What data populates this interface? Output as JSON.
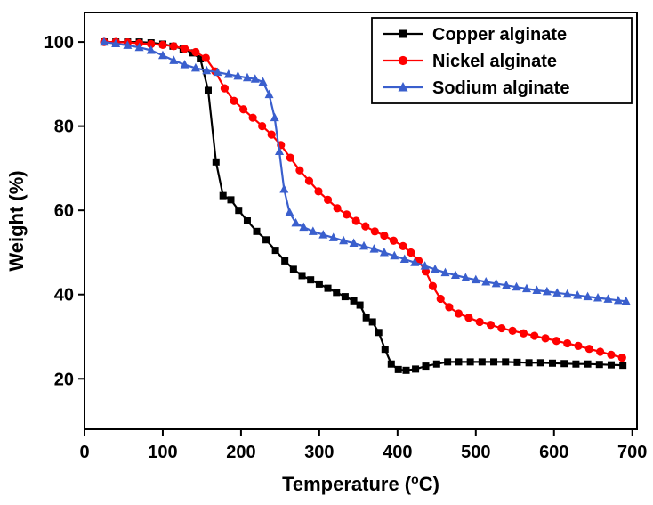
{
  "figure": {
    "background": "#ffffff",
    "axis_color": "#000000"
  },
  "chart_data": {
    "type": "line",
    "title": "",
    "xlabel": "Temperature (°C)",
    "xlabel_parts": {
      "pre": "Temperature (",
      "sup": "o",
      "post": "C)"
    },
    "ylabel": "Weight (%)",
    "xlim": [
      0,
      706
    ],
    "ylim": [
      8,
      107
    ],
    "xticks": [
      0,
      100,
      200,
      300,
      400,
      500,
      600,
      700
    ],
    "yticks": [
      20,
      40,
      60,
      80,
      100
    ],
    "grid": false,
    "legend_position": "top-right",
    "series": [
      {
        "name": "Copper alginate",
        "color": "#000000",
        "marker": "square",
        "x": [
          25,
          40,
          55,
          70,
          85,
          100,
          113,
          126,
          138,
          148,
          158,
          168,
          177,
          187,
          197,
          208,
          220,
          232,
          244,
          256,
          267,
          278,
          289,
          300,
          311,
          322,
          333,
          344,
          352,
          360,
          368,
          376,
          384,
          392,
          401,
          411,
          423,
          436,
          450,
          464,
          478,
          493,
          508,
          523,
          538,
          553,
          568,
          583,
          598,
          613,
          628,
          643,
          658,
          673,
          688
        ],
        "y": [
          100,
          100,
          100,
          100,
          99.8,
          99.5,
          99,
          98.3,
          97.4,
          96,
          88.5,
          71.5,
          63.5,
          62.5,
          60,
          57.5,
          55,
          53,
          50.5,
          48,
          46,
          44.5,
          43.5,
          42.5,
          41.5,
          40.5,
          39.5,
          38.5,
          37.5,
          34.5,
          33.5,
          31,
          27,
          23.5,
          22.2,
          22,
          22.3,
          23,
          23.5,
          24,
          24,
          24,
          24,
          24,
          24,
          23.9,
          23.8,
          23.8,
          23.7,
          23.6,
          23.5,
          23.5,
          23.4,
          23.3,
          23.2
        ]
      },
      {
        "name": "Nickel alginate",
        "color": "#FF0000",
        "marker": "circle",
        "x": [
          25,
          40,
          55,
          70,
          85,
          100,
          114,
          128,
          142,
          155,
          167,
          179,
          191,
          203,
          215,
          227,
          239,
          251,
          263,
          275,
          287,
          299,
          311,
          323,
          335,
          347,
          359,
          371,
          383,
          395,
          407,
          417,
          427,
          436,
          445,
          455,
          466,
          478,
          491,
          505,
          519,
          533,
          547,
          561,
          575,
          589,
          603,
          617,
          631,
          645,
          659,
          673,
          687
        ],
        "y": [
          100,
          100,
          99.9,
          99.7,
          99.5,
          99.3,
          99,
          98.4,
          97.6,
          96.2,
          93,
          89,
          86,
          84,
          82,
          80,
          78,
          75.5,
          72.5,
          69.5,
          67,
          64.5,
          62.5,
          60.5,
          59,
          57.5,
          56.2,
          55,
          54,
          52.8,
          51.5,
          50,
          48,
          45.5,
          42,
          39,
          37,
          35.5,
          34.5,
          33.5,
          32.8,
          32,
          31.4,
          30.8,
          30.2,
          29.6,
          29,
          28.4,
          27.8,
          27.1,
          26.4,
          25.7,
          25
        ]
      },
      {
        "name": "Sodium alginate",
        "color": "#3A5FCD",
        "marker": "triangle",
        "x": [
          25,
          40,
          55,
          70,
          85,
          100,
          114,
          128,
          142,
          156,
          170,
          184,
          196,
          208,
          218,
          228,
          236,
          243,
          249,
          255,
          262,
          270,
          280,
          292,
          305,
          318,
          331,
          344,
          357,
          370,
          383,
          396,
          409,
          422,
          435,
          448,
          461,
          474,
          487,
          500,
          513,
          526,
          539,
          552,
          565,
          578,
          591,
          604,
          617,
          630,
          643,
          656,
          669,
          682,
          692
        ],
        "y": [
          100,
          99.6,
          99.2,
          98.7,
          98,
          96.8,
          95.6,
          94.6,
          93.8,
          93.2,
          92.8,
          92.3,
          91.9,
          91.5,
          91.2,
          90.5,
          87.5,
          82,
          74,
          65,
          59.5,
          57,
          56,
          55,
          54.2,
          53.5,
          52.8,
          52.2,
          51.5,
          50.8,
          50,
          49.2,
          48.4,
          47.6,
          46.8,
          46,
          45.2,
          44.6,
          44,
          43.5,
          43,
          42.6,
          42.2,
          41.8,
          41.4,
          41,
          40.7,
          40.4,
          40.1,
          39.8,
          39.5,
          39.2,
          38.9,
          38.6,
          38.4
        ]
      }
    ]
  }
}
